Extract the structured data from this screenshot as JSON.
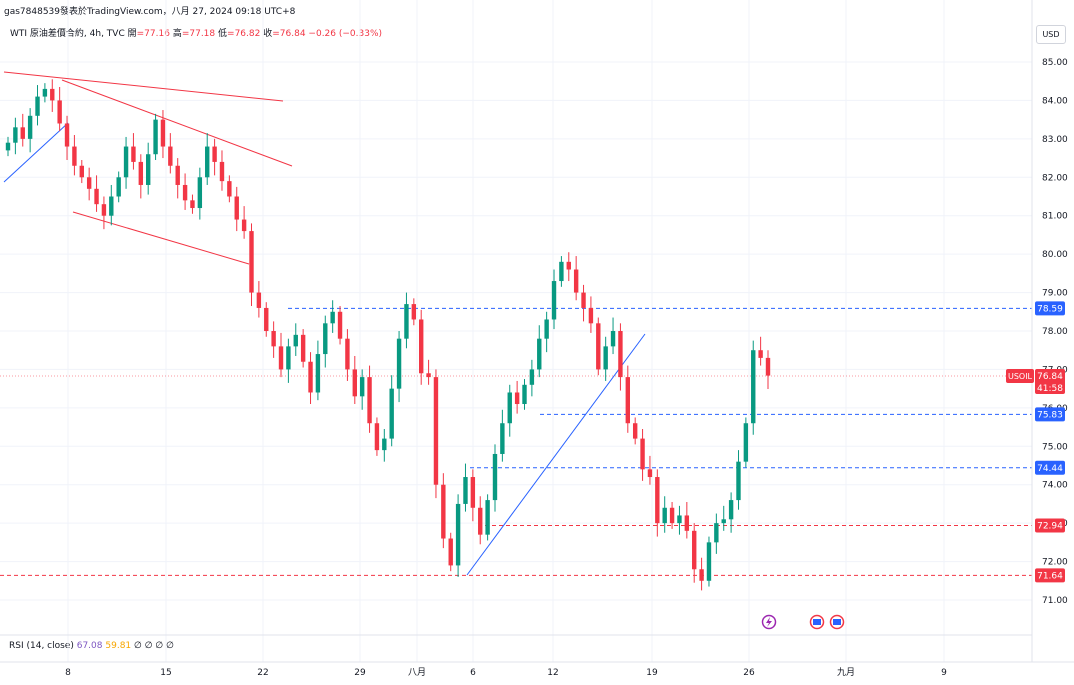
{
  "header": {
    "caption": "gas7848539發表於TradingView.com，八月 27, 2024 09:18 UTC+8"
  },
  "legend": {
    "symbol": "WTI 原油差價合約, 4h, TVC",
    "open_label": "開",
    "open_value": "=77.16",
    "high_label": "高",
    "high_value": "=77.18",
    "low_label": "低",
    "low_value": "=76.82",
    "close_label": "收",
    "close_value": "=76.84",
    "change": "−0.26 (−0.33%)"
  },
  "currency_button": "USD",
  "rsi": {
    "label": "RSI (14, close)",
    "value1": "67.08",
    "value2": "59.81",
    "placeholders": "∅ ∅ ∅ ∅"
  },
  "price_tags": {
    "usoil_label": "USOIL",
    "usoil_price": "76.84",
    "countdown": "41:58",
    "level_78_59": "78.59",
    "level_75_83": "75.83",
    "level_74_44": "74.44",
    "level_72_94": "72.94",
    "level_71_64": "71.64"
  },
  "colors": {
    "up": "#089981",
    "down": "#f23645",
    "trend_red": "#f23645",
    "trend_blue": "#2962ff",
    "level_blue": "#2962ff",
    "level_red": "#f23645"
  },
  "chart_data": {
    "type": "candlestick",
    "timeframe": "4h",
    "y_axis_ticks": [
      "85.00",
      "84.00",
      "83.00",
      "82.00",
      "81.00",
      "80.00",
      "79.00",
      "78.00",
      "77.00",
      "76.00",
      "75.00",
      "74.00",
      "73.00",
      "72.00",
      "71.00"
    ],
    "x_axis_ticks": [
      "8",
      "15",
      "22",
      "29",
      "八月",
      "6",
      "12",
      "19",
      "26",
      "九月",
      "9"
    ],
    "horizontal_levels": [
      {
        "price": 78.59,
        "color": "blue"
      },
      {
        "price": 75.83,
        "color": "blue"
      },
      {
        "price": 74.44,
        "color": "blue"
      },
      {
        "price": 72.94,
        "color": "red"
      },
      {
        "price": 71.64,
        "color": "red"
      }
    ],
    "last_price": 76.84,
    "approx_closes": [
      82.9,
      83.3,
      83.0,
      83.6,
      84.1,
      84.3,
      84.0,
      83.4,
      82.8,
      82.3,
      82.0,
      81.7,
      81.3,
      81.0,
      81.5,
      82.0,
      82.8,
      82.4,
      81.8,
      82.6,
      83.5,
      82.8,
      82.3,
      81.8,
      81.4,
      81.2,
      82.0,
      82.8,
      82.4,
      81.9,
      81.5,
      80.9,
      80.6,
      79.0,
      78.6,
      78.0,
      77.6,
      77.0,
      77.6,
      77.9,
      77.2,
      76.4,
      77.4,
      78.2,
      78.5,
      77.8,
      77.0,
      76.3,
      76.8,
      75.6,
      74.9,
      75.2,
      76.5,
      77.8,
      78.7,
      78.3,
      76.9,
      76.8,
      74.0,
      72.6,
      71.9,
      73.5,
      74.2,
      73.4,
      72.7,
      73.6,
      74.8,
      75.6,
      76.4,
      76.1,
      76.6,
      77.0,
      77.8,
      78.3,
      79.3,
      79.8,
      79.6,
      79.0,
      78.6,
      78.2,
      77.0,
      77.6,
      78.0,
      76.8,
      75.6,
      75.2,
      74.4,
      74.2,
      73.0,
      73.4,
      73.0,
      73.2,
      72.8,
      71.8,
      71.5,
      72.5,
      73.0,
      73.1,
      73.6,
      74.6,
      75.6,
      77.5,
      77.3,
      76.84
    ]
  }
}
